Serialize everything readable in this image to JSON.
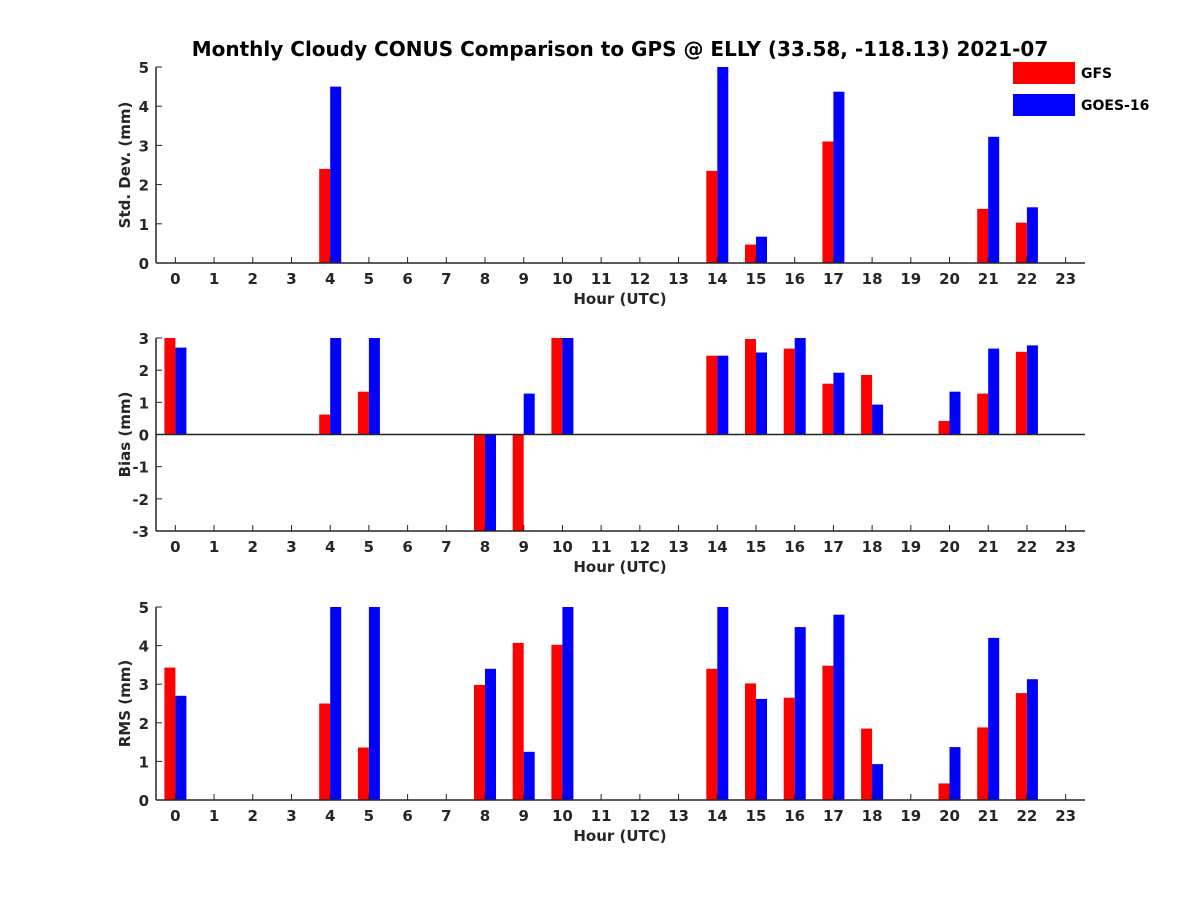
{
  "title": "Monthly Cloudy CONUS Comparison to GPS @ ELLY (33.58, -118.13) 2021-07",
  "legend": {
    "placement": "top-right",
    "items": [
      {
        "name": "GFS",
        "color": "#ff0000"
      },
      {
        "name": "GOES-16",
        "color": "#0000ff"
      }
    ]
  },
  "colors": {
    "gfs": "#ff0000",
    "goes16": "#0000ff",
    "axis": "#262626"
  },
  "chart_data": [
    {
      "type": "bar",
      "title": "Monthly Cloudy CONUS Comparison to GPS @ ELLY (33.58, -118.13) 2021-07",
      "xlabel": "Hour (UTC)",
      "ylabel": "Std. Dev. (mm)",
      "categories": [
        "0",
        "1",
        "2",
        "3",
        "4",
        "5",
        "6",
        "7",
        "8",
        "9",
        "10",
        "11",
        "12",
        "13",
        "14",
        "15",
        "16",
        "17",
        "18",
        "19",
        "20",
        "21",
        "22",
        "23"
      ],
      "ylim": [
        0,
        5
      ],
      "yticks": [
        "0",
        "1",
        "2",
        "3",
        "4",
        "5"
      ],
      "grid": false,
      "series": [
        {
          "name": "GFS",
          "values": [
            0,
            0,
            0,
            0,
            2.4,
            0,
            0,
            0,
            0,
            0,
            0,
            0,
            0,
            0,
            2.35,
            0.47,
            0,
            3.1,
            0,
            0,
            0,
            1.38,
            1.03,
            0
          ]
        },
        {
          "name": "GOES-16",
          "values": [
            0,
            0,
            0,
            0,
            4.5,
            0,
            0,
            0,
            0,
            0,
            0,
            0,
            0,
            0,
            5.0,
            0.67,
            0,
            4.37,
            0,
            0,
            0,
            3.22,
            1.42,
            0
          ]
        }
      ]
    },
    {
      "type": "bar",
      "xlabel": "Hour (UTC)",
      "ylabel": "Bias (mm)",
      "categories": [
        "0",
        "1",
        "2",
        "3",
        "4",
        "5",
        "6",
        "7",
        "8",
        "9",
        "10",
        "11",
        "12",
        "13",
        "14",
        "15",
        "16",
        "17",
        "18",
        "19",
        "20",
        "21",
        "22",
        "23"
      ],
      "ylim": [
        -3,
        3
      ],
      "yticks": [
        "-3",
        "-2",
        "-1",
        "0",
        "1",
        "2",
        "3"
      ],
      "grid": false,
      "series": [
        {
          "name": "GFS",
          "values": [
            3.0,
            0,
            0,
            0,
            0.62,
            1.33,
            0,
            0,
            -3.0,
            -3.0,
            3.0,
            0,
            0,
            0,
            2.45,
            2.97,
            2.67,
            1.58,
            1.85,
            0,
            0.42,
            1.27,
            2.57,
            0
          ]
        },
        {
          "name": "GOES-16",
          "values": [
            2.7,
            0,
            0,
            0,
            3.0,
            3.0,
            0,
            0,
            -3.0,
            1.27,
            3.0,
            0,
            0,
            0,
            2.45,
            2.55,
            3.0,
            1.92,
            0.93,
            0,
            1.33,
            2.67,
            2.77,
            0
          ]
        }
      ]
    },
    {
      "type": "bar",
      "xlabel": "Hour (UTC)",
      "ylabel": "RMS (mm)",
      "categories": [
        "0",
        "1",
        "2",
        "3",
        "4",
        "5",
        "6",
        "7",
        "8",
        "9",
        "10",
        "11",
        "12",
        "13",
        "14",
        "15",
        "16",
        "17",
        "18",
        "19",
        "20",
        "21",
        "22",
        "23"
      ],
      "ylim": [
        0,
        5
      ],
      "yticks": [
        "0",
        "1",
        "2",
        "3",
        "4",
        "5"
      ],
      "grid": false,
      "series": [
        {
          "name": "GFS",
          "values": [
            3.43,
            0,
            0,
            0,
            2.5,
            1.36,
            0,
            0,
            2.98,
            4.07,
            4.02,
            0,
            0,
            0,
            3.4,
            3.02,
            2.65,
            3.48,
            1.85,
            0,
            0.43,
            1.88,
            2.77,
            0
          ]
        },
        {
          "name": "GOES-16",
          "values": [
            2.7,
            0,
            0,
            0,
            5.0,
            5.0,
            0,
            0,
            3.4,
            1.25,
            5.0,
            0,
            0,
            0,
            5.0,
            2.62,
            4.48,
            4.8,
            0.93,
            0,
            1.37,
            4.2,
            3.13,
            0
          ]
        }
      ]
    }
  ]
}
